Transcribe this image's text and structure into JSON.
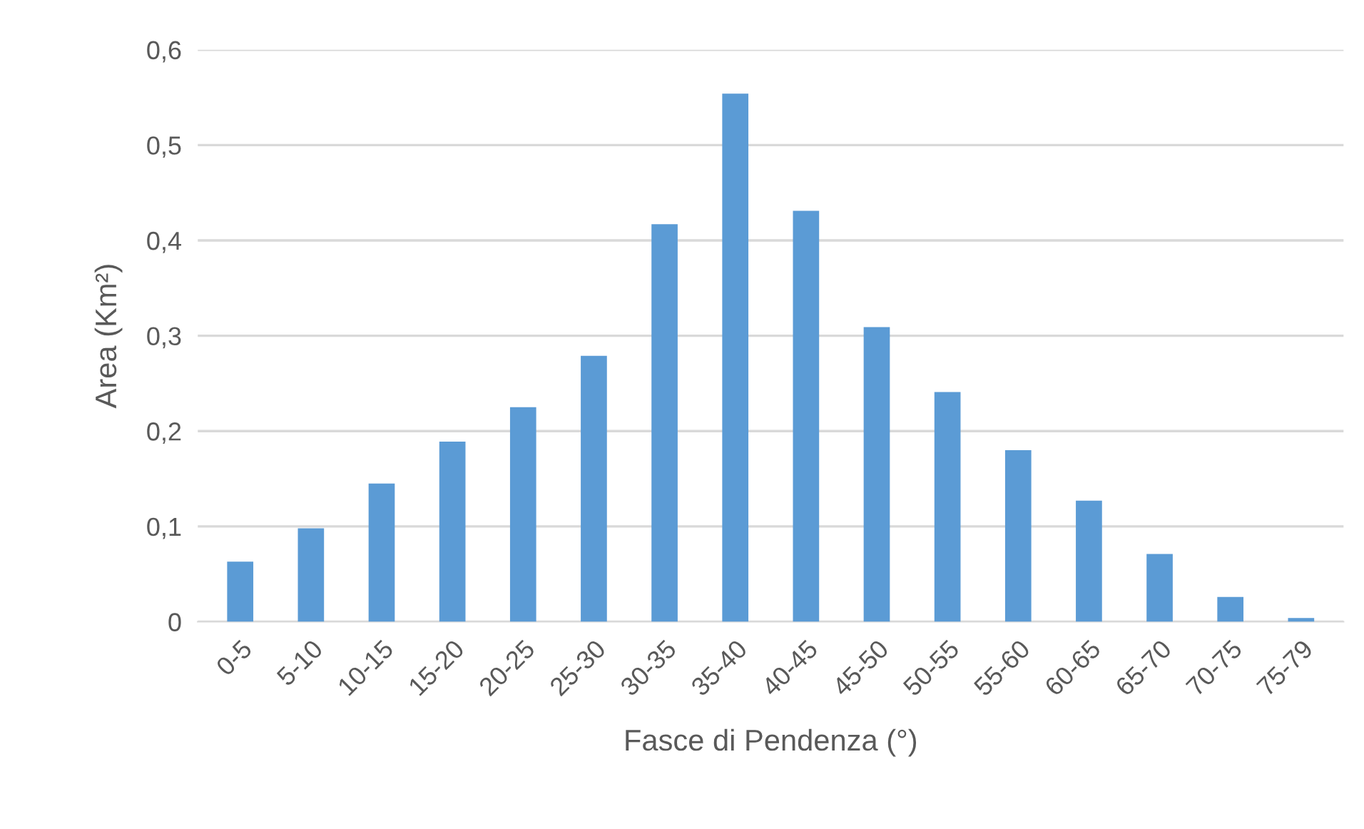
{
  "chart_data": {
    "type": "bar",
    "xlabel": "Fasce di Pendenza (°)",
    "ylabel": "Area (Km²)",
    "categories": [
      "0-5",
      "5-10",
      "10-15",
      "15-20",
      "20-25",
      "25-30",
      "30-35",
      "35-40",
      "40-45",
      "45-50",
      "50-55",
      "55-60",
      "60-65",
      "65-70",
      "70-75",
      "75-79"
    ],
    "values": [
      0.063,
      0.098,
      0.145,
      0.189,
      0.225,
      0.279,
      0.417,
      0.554,
      0.431,
      0.309,
      0.241,
      0.18,
      0.127,
      0.071,
      0.026,
      0.004
    ],
    "color": "#5b9bd5",
    "ylim": [
      0,
      0.6
    ],
    "yticks": [
      0,
      {
        "value": 0.1,
        "label": "0,1"
      },
      {
        "value": 0.2,
        "label": "0,2"
      },
      {
        "value": 0.3,
        "label": "0,3"
      },
      {
        "value": 0.4,
        "label": "0,4"
      },
      {
        "value": 0.5,
        "label": "0,5"
      },
      {
        "value": 0.6,
        "label": "0,6"
      }
    ],
    "grid": "y",
    "legend": false
  }
}
